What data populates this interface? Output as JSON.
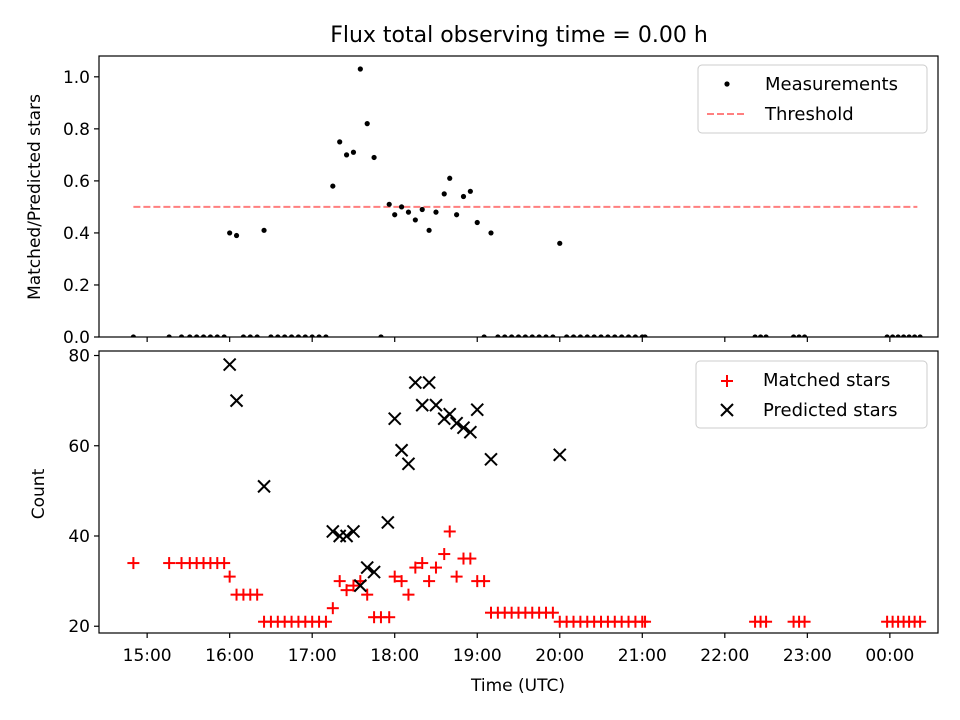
{
  "colors": {
    "matched": "#ff0000",
    "predicted": "#000000",
    "measurement": "#000000",
    "threshold": "#ff7f7f"
  },
  "chart_data": [
    {
      "type": "scatter",
      "title": "Flux total observing time = 0.00 h",
      "xlabel": "",
      "ylabel": "Matched/Predicted stars",
      "xlim": [
        "14:25",
        "24:35"
      ],
      "ylim": [
        0.0,
        1.08
      ],
      "grid": false,
      "legend_position": "top-right",
      "yticks": [
        0.0,
        0.2,
        0.4,
        0.6,
        0.8,
        1.0
      ],
      "ytick_labels": [
        "0.0",
        "0.2",
        "0.4",
        "0.6",
        "0.8",
        "1.0"
      ],
      "series": [
        {
          "name": "Measurements",
          "marker": "dot",
          "x": [
            "14:50",
            "15:16",
            "15:25",
            "15:31",
            "15:36",
            "15:41",
            "15:46",
            "15:51",
            "15:56",
            "16:00",
            "16:05",
            "16:10",
            "16:15",
            "16:20",
            "16:25",
            "16:30",
            "16:35",
            "16:40",
            "16:45",
            "16:50",
            "16:55",
            "17:00",
            "17:05",
            "17:10",
            "17:15",
            "17:20",
            "17:25",
            "17:30",
            "17:35",
            "17:40",
            "17:45",
            "17:50",
            "17:56",
            "18:00",
            "18:05",
            "18:10",
            "18:15",
            "18:20",
            "18:25",
            "18:30",
            "18:36",
            "18:40",
            "18:45",
            "18:50",
            "18:55",
            "19:00",
            "19:05",
            "19:10",
            "19:15",
            "19:20",
            "19:25",
            "19:30",
            "19:35",
            "19:40",
            "19:45",
            "19:50",
            "19:55",
            "20:00",
            "20:05",
            "20:10",
            "20:15",
            "20:20",
            "20:25",
            "20:30",
            "20:35",
            "20:40",
            "20:45",
            "20:50",
            "20:55",
            "21:00",
            "21:02",
            "22:22",
            "22:26",
            "22:30",
            "22:50",
            "22:54",
            "22:58",
            "23:58",
            "24:02",
            "24:06",
            "24:10",
            "24:14",
            "24:18",
            "24:22"
          ],
          "y": [
            0.0,
            0.0,
            0.0,
            0.0,
            0.0,
            0.0,
            0.0,
            0.0,
            0.0,
            0.4,
            0.39,
            0.0,
            0.0,
            0.0,
            0.41,
            0.0,
            0.0,
            0.0,
            0.0,
            0.0,
            0.0,
            0.0,
            0.0,
            0.0,
            0.58,
            0.75,
            0.7,
            0.71,
            1.03,
            0.82,
            0.69,
            0.0,
            0.51,
            0.47,
            0.5,
            0.48,
            0.45,
            0.49,
            0.41,
            0.48,
            0.55,
            0.61,
            0.47,
            0.54,
            0.56,
            0.44,
            0.0,
            0.4,
            0.0,
            0.0,
            0.0,
            0.0,
            0.0,
            0.0,
            0.0,
            0.0,
            0.0,
            0.36,
            0.0,
            0.0,
            0.0,
            0.0,
            0.0,
            0.0,
            0.0,
            0.0,
            0.0,
            0.0,
            0.0,
            0.0,
            0.0,
            0.0,
            0.0,
            0.0,
            0.0,
            0.0,
            0.0,
            0.0,
            0.0,
            0.0,
            0.0,
            0.0,
            0.0,
            0.0
          ]
        },
        {
          "name": "Threshold",
          "line": "dashed",
          "x": [
            "14:50",
            "24:20"
          ],
          "y": [
            0.5,
            0.5
          ]
        }
      ]
    },
    {
      "type": "scatter",
      "title": "",
      "xlabel": "Time (UTC)",
      "ylabel": "Count",
      "xlim": [
        "14:25",
        "24:35"
      ],
      "ylim": [
        18.5,
        81.0
      ],
      "grid": false,
      "legend_position": "top-right",
      "yticks": [
        20,
        40,
        60,
        80
      ],
      "ytick_labels": [
        "20",
        "40",
        "60",
        "80"
      ],
      "xticks": [
        "15:00",
        "16:00",
        "17:00",
        "18:00",
        "19:00",
        "20:00",
        "21:00",
        "22:00",
        "23:00",
        "24:00"
      ],
      "xtick_labels": [
        "15:00",
        "16:00",
        "17:00",
        "18:00",
        "19:00",
        "20:00",
        "21:00",
        "22:00",
        "23:00",
        "00:00"
      ],
      "series": [
        {
          "name": "Matched stars",
          "marker": "plus",
          "x": [
            "14:50",
            "15:16",
            "15:25",
            "15:31",
            "15:36",
            "15:41",
            "15:46",
            "15:51",
            "15:56",
            "16:00",
            "16:05",
            "16:10",
            "16:15",
            "16:20",
            "16:25",
            "16:30",
            "16:35",
            "16:40",
            "16:45",
            "16:50",
            "16:55",
            "17:00",
            "17:05",
            "17:10",
            "17:15",
            "17:20",
            "17:25",
            "17:30",
            "17:35",
            "17:40",
            "17:45",
            "17:50",
            "17:56",
            "18:00",
            "18:05",
            "18:10",
            "18:15",
            "18:20",
            "18:25",
            "18:30",
            "18:36",
            "18:40",
            "18:45",
            "18:50",
            "18:55",
            "19:00",
            "19:05",
            "19:10",
            "19:15",
            "19:20",
            "19:25",
            "19:30",
            "19:35",
            "19:40",
            "19:45",
            "19:50",
            "19:55",
            "20:00",
            "20:05",
            "20:10",
            "20:15",
            "20:20",
            "20:25",
            "20:30",
            "20:35",
            "20:40",
            "20:45",
            "20:50",
            "20:55",
            "21:00",
            "21:02",
            "22:22",
            "22:26",
            "22:30",
            "22:50",
            "22:54",
            "22:58",
            "23:58",
            "24:02",
            "24:06",
            "24:10",
            "24:14",
            "24:18",
            "24:22"
          ],
          "y": [
            34,
            34,
            34,
            34,
            34,
            34,
            34,
            34,
            34,
            31,
            27,
            27,
            27,
            27,
            21,
            21,
            21,
            21,
            21,
            21,
            21,
            21,
            21,
            21,
            24,
            30,
            28,
            29,
            30,
            27,
            22,
            22,
            22,
            31,
            30,
            27,
            33,
            34,
            30,
            33,
            36,
            41,
            31,
            35,
            35,
            30,
            30,
            23,
            23,
            23,
            23,
            23,
            23,
            23,
            23,
            23,
            23,
            21,
            21,
            21,
            21,
            21,
            21,
            21,
            21,
            21,
            21,
            21,
            21,
            21,
            21,
            21,
            21,
            21,
            21,
            21,
            21,
            21,
            21,
            21,
            21,
            21,
            21,
            21
          ]
        },
        {
          "name": "Predicted stars",
          "marker": "x",
          "x": [
            "16:00",
            "16:05",
            "16:25",
            "17:15",
            "17:20",
            "17:25",
            "17:30",
            "17:35",
            "17:40",
            "17:45",
            "17:55",
            "18:00",
            "18:05",
            "18:10",
            "18:15",
            "18:20",
            "18:25",
            "18:30",
            "18:36",
            "18:40",
            "18:45",
            "18:50",
            "18:55",
            "19:00",
            "19:10",
            "20:00"
          ],
          "y": [
            78,
            70,
            51,
            41,
            40,
            40,
            41,
            29,
            33,
            32,
            43,
            66,
            59,
            56,
            74,
            69,
            74,
            69,
            66,
            67,
            65,
            64,
            63,
            68,
            57,
            58
          ]
        }
      ]
    }
  ]
}
